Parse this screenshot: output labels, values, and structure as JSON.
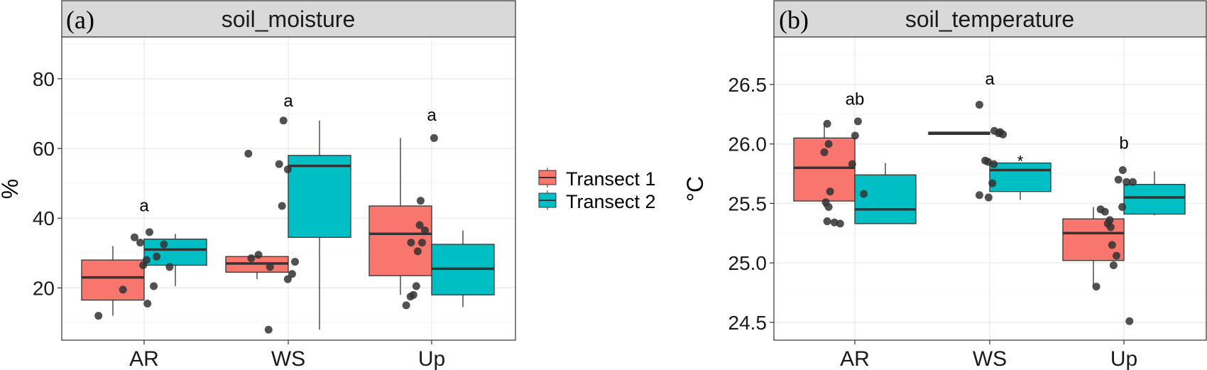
{
  "colors": {
    "transect1": "#F8766D",
    "transect2": "#00BFC4",
    "strip": "#D9D9D9",
    "grid_major": "#EBEBEB",
    "grid_minor": "#F5F5F5",
    "point": "#333333"
  },
  "legend": {
    "placement": "right",
    "entries": [
      "Transect 1",
      "Transect 2"
    ]
  },
  "chart_data": [
    {
      "type": "box",
      "panel_label": "(a)",
      "title": "soil_moisture",
      "xlabel": "",
      "ylabel": "%",
      "ylim": [
        5,
        92
      ],
      "yticks": [
        20,
        40,
        60,
        80
      ],
      "ytick_labels": [
        "20",
        "40",
        "60",
        "80"
      ],
      "grid": true,
      "categories": [
        "AR",
        "WS",
        "Up"
      ],
      "letters": [
        {
          "category": "AR",
          "text": "a",
          "y": 42
        },
        {
          "category": "WS",
          "text": "a",
          "y": 72
        },
        {
          "category": "Up",
          "text": "a",
          "y": 68
        }
      ],
      "series": [
        {
          "name": "Transect 1",
          "boxes": [
            {
              "category": "AR",
              "min": 12,
              "q1": 16.5,
              "median": 23,
              "q3": 28,
              "max": 32
            },
            {
              "category": "WS",
              "min": 22.5,
              "q1": 24.5,
              "median": 27,
              "q3": 29,
              "max": 29.5
            },
            {
              "category": "Up",
              "min": 18,
              "q1": 23.5,
              "median": 35.5,
              "q3": 43.5,
              "max": 63
            }
          ]
        },
        {
          "name": "Transect 2",
          "boxes": [
            {
              "category": "AR",
              "min": 20.5,
              "q1": 26.5,
              "median": 31,
              "q3": 34,
              "max": 35.5
            },
            {
              "category": "WS",
              "min": 8,
              "q1": 34.5,
              "median": 55,
              "q3": 58,
              "max": 68
            },
            {
              "category": "Up",
              "min": 14.5,
              "q1": 18,
              "median": 25.5,
              "q3": 32.5,
              "max": 36.5
            }
          ]
        }
      ],
      "points": [
        {
          "category": "AR",
          "series": 0,
          "dx": -0.1,
          "y": 12
        },
        {
          "category": "AR",
          "series": 0,
          "dx": 0.07,
          "y": 19.5
        },
        {
          "category": "AR",
          "series": 0,
          "dx": 0.15,
          "y": 34.5
        },
        {
          "category": "AR",
          "series": 0,
          "dx": 0.19,
          "y": 33
        },
        {
          "category": "AR",
          "series": 0,
          "dx": 0.21,
          "y": 26.5
        },
        {
          "category": "AR",
          "series": 0,
          "dx": 0.24,
          "y": 15.5
        },
        {
          "category": "AR",
          "series": 1,
          "dx": -0.18,
          "y": 36
        },
        {
          "category": "AR",
          "series": 1,
          "dx": -0.13,
          "y": 29
        },
        {
          "category": "AR",
          "series": 1,
          "dx": -0.15,
          "y": 20.5
        },
        {
          "category": "AR",
          "series": 1,
          "dx": -0.08,
          "y": 32.5
        },
        {
          "category": "AR",
          "series": 1,
          "dx": -0.04,
          "y": 26
        },
        {
          "category": "AR",
          "series": 1,
          "dx": -0.2,
          "y": 28
        },
        {
          "category": "WS",
          "series": 0,
          "dx": -0.06,
          "y": 58.5
        },
        {
          "category": "WS",
          "series": 0,
          "dx": -0.04,
          "y": 28.5
        },
        {
          "category": "WS",
          "series": 0,
          "dx": 0.01,
          "y": 29.5
        },
        {
          "category": "WS",
          "series": 0,
          "dx": 0.09,
          "y": 26
        },
        {
          "category": "WS",
          "series": 0,
          "dx": 0.08,
          "y": 8
        },
        {
          "category": "WS",
          "series": 1,
          "dx": -0.28,
          "y": 55.5
        },
        {
          "category": "WS",
          "series": 1,
          "dx": -0.26,
          "y": 43.5
        },
        {
          "category": "WS",
          "series": 1,
          "dx": -0.25,
          "y": 68
        },
        {
          "category": "WS",
          "series": 1,
          "dx": -0.22,
          "y": 54
        },
        {
          "category": "WS",
          "series": 1,
          "dx": -0.19,
          "y": 24
        },
        {
          "category": "WS",
          "series": 1,
          "dx": -0.17,
          "y": 27.5
        },
        {
          "category": "WS",
          "series": 1,
          "dx": -0.22,
          "y": 22.5
        },
        {
          "category": "Up",
          "series": 0,
          "dx": 0.04,
          "y": 15
        },
        {
          "category": "Up",
          "series": 0,
          "dx": 0.07,
          "y": 17.5
        },
        {
          "category": "Up",
          "series": 0,
          "dx": 0.09,
          "y": 18
        },
        {
          "category": "Up",
          "series": 0,
          "dx": 0.11,
          "y": 20.5
        },
        {
          "category": "Up",
          "series": 0,
          "dx": 0.12,
          "y": 30.5
        },
        {
          "category": "Up",
          "series": 0,
          "dx": 0.14,
          "y": 45
        },
        {
          "category": "Up",
          "series": 0,
          "dx": 0.15,
          "y": 33
        },
        {
          "category": "Up",
          "series": 0,
          "dx": 0.17,
          "y": 36.5
        },
        {
          "category": "Up",
          "series": 1,
          "dx": -0.2,
          "y": 63
        },
        {
          "category": "Up",
          "series": 1,
          "dx": -0.3,
          "y": 38
        },
        {
          "category": "Up",
          "series": 1,
          "dx": -0.36,
          "y": 33
        }
      ]
    },
    {
      "type": "box",
      "panel_label": "(b)",
      "title": "soil_temperature",
      "xlabel": "",
      "ylabel": "°C",
      "ylim": [
        24.35,
        26.9
      ],
      "yticks": [
        24.5,
        25.0,
        25.5,
        26.0,
        26.5
      ],
      "ytick_labels": [
        "24.5",
        "25.0",
        "25.5",
        "26.0",
        "26.5"
      ],
      "grid": true,
      "categories": [
        "AR",
        "WS",
        "Up"
      ],
      "letters": [
        {
          "category": "AR",
          "text": "ab",
          "y": 26.33
        },
        {
          "category": "WS",
          "text": "a",
          "y": 26.5
        },
        {
          "category": "Up",
          "text": "b",
          "y": 25.96
        }
      ],
      "marks": [
        {
          "category": "WS",
          "series": 1,
          "text": "*",
          "y": 25.87
        }
      ],
      "series": [
        {
          "name": "Transect 1",
          "boxes": [
            {
              "category": "AR",
              "min": 25.47,
              "q1": 25.52,
              "median": 25.8,
              "q3": 26.05,
              "max": 26.17
            },
            {
              "category": "WS",
              "min": 26.08,
              "q1": 26.08,
              "median": 26.09,
              "q3": 26.1,
              "max": 26.1
            },
            {
              "category": "Up",
              "min": 24.8,
              "q1": 25.02,
              "median": 25.25,
              "q3": 25.37,
              "max": 25.47
            }
          ]
        },
        {
          "name": "Transect 2",
          "boxes": [
            {
              "category": "AR",
              "min": 25.33,
              "q1": 25.33,
              "median": 25.45,
              "q3": 25.74,
              "max": 25.84
            },
            {
              "category": "WS",
              "min": 25.53,
              "q1": 25.6,
              "median": 25.78,
              "q3": 25.84,
              "max": 25.84
            },
            {
              "category": "Up",
              "min": 25.4,
              "q1": 25.41,
              "median": 25.55,
              "q3": 25.66,
              "max": 25.77
            }
          ]
        }
      ],
      "points": [
        {
          "category": "AR",
          "series": 0,
          "dx": 0.02,
          "y": 26.17
        },
        {
          "category": "AR",
          "series": 0,
          "dx": 0.03,
          "y": 26.0
        },
        {
          "category": "AR",
          "series": 0,
          "dx": 0.0,
          "y": 25.93
        },
        {
          "category": "AR",
          "series": 0,
          "dx": 0.04,
          "y": 25.6
        },
        {
          "category": "AR",
          "series": 0,
          "dx": 0.01,
          "y": 25.51
        },
        {
          "category": "AR",
          "series": 0,
          "dx": 0.03,
          "y": 25.47
        },
        {
          "category": "AR",
          "series": 0,
          "dx": 0.02,
          "y": 25.35
        },
        {
          "category": "AR",
          "series": 0,
          "dx": 0.07,
          "y": 25.34
        },
        {
          "category": "AR",
          "series": 0,
          "dx": 0.11,
          "y": 25.33
        },
        {
          "category": "AR",
          "series": 1,
          "dx": -0.19,
          "y": 26.19
        },
        {
          "category": "AR",
          "series": 1,
          "dx": -0.21,
          "y": 26.07
        },
        {
          "category": "AR",
          "series": 1,
          "dx": -0.23,
          "y": 25.83
        },
        {
          "category": "AR",
          "series": 1,
          "dx": -0.15,
          "y": 25.58
        },
        {
          "category": "WS",
          "series": 0,
          "dx": 0.14,
          "y": 26.33
        },
        {
          "category": "WS",
          "series": 0,
          "dx": 0.14,
          "y": 25.57
        },
        {
          "category": "WS",
          "series": 0,
          "dx": 0.18,
          "y": 25.86
        },
        {
          "category": "WS",
          "series": 0,
          "dx": 0.2,
          "y": 25.85
        },
        {
          "category": "WS",
          "series": 0,
          "dx": 0.24,
          "y": 25.83
        },
        {
          "category": "WS",
          "series": 0,
          "dx": 0.23,
          "y": 25.67
        },
        {
          "category": "WS",
          "series": 1,
          "dx": -0.18,
          "y": 26.11
        },
        {
          "category": "WS",
          "series": 1,
          "dx": -0.14,
          "y": 26.1
        },
        {
          "category": "WS",
          "series": 1,
          "dx": -0.12,
          "y": 26.08
        },
        {
          "category": "WS",
          "series": 1,
          "dx": -0.15,
          "y": 26.09
        },
        {
          "category": "WS",
          "series": 1,
          "dx": -0.22,
          "y": 25.55
        },
        {
          "category": "Up",
          "series": 0,
          "dx": 0.02,
          "y": 24.8
        },
        {
          "category": "Up",
          "series": 0,
          "dx": 0.05,
          "y": 25.45
        },
        {
          "category": "Up",
          "series": 0,
          "dx": 0.08,
          "y": 25.43
        },
        {
          "category": "Up",
          "series": 0,
          "dx": 0.1,
          "y": 25.33
        },
        {
          "category": "Up",
          "series": 0,
          "dx": 0.12,
          "y": 25.3
        },
        {
          "category": "Up",
          "series": 0,
          "dx": 0.13,
          "y": 25.15
        },
        {
          "category": "Up",
          "series": 0,
          "dx": 0.14,
          "y": 24.98
        },
        {
          "category": "Up",
          "series": 0,
          "dx": 0.16,
          "y": 25.06
        },
        {
          "category": "Up",
          "series": 0,
          "dx": 0.2,
          "y": 25.47
        },
        {
          "category": "Up",
          "series": 0,
          "dx": 0.23,
          "y": 25.68
        },
        {
          "category": "Up",
          "series": 0,
          "dx": 0.25,
          "y": 24.51
        },
        {
          "category": "Up",
          "series": 1,
          "dx": -0.22,
          "y": 25.78
        },
        {
          "category": "Up",
          "series": 1,
          "dx": -0.25,
          "y": 25.7
        },
        {
          "category": "Up",
          "series": 1,
          "dx": -0.31,
          "y": 25.36
        },
        {
          "category": "Up",
          "series": 1,
          "dx": -0.15,
          "y": 25.68
        }
      ]
    }
  ]
}
